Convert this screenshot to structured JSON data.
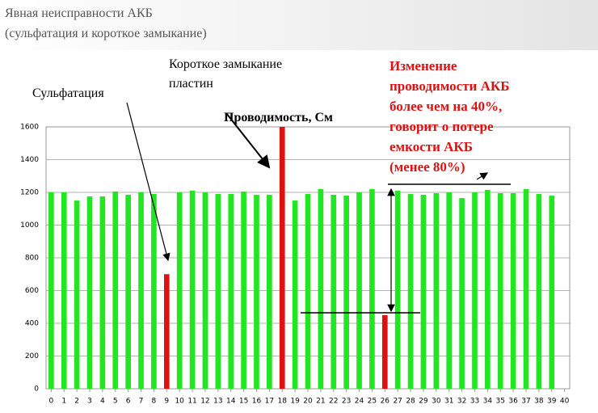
{
  "header": {
    "title": "Явная неисправности АКБ",
    "subtitle": "(сульфатация и короткое замыкание)"
  },
  "chart_data": {
    "type": "bar",
    "title": "Проводимость, См",
    "x": [
      0,
      1,
      2,
      3,
      4,
      5,
      6,
      7,
      8,
      9,
      10,
      11,
      12,
      13,
      14,
      15,
      16,
      17,
      18,
      19,
      20,
      21,
      22,
      23,
      24,
      25,
      26,
      27,
      28,
      29,
      30,
      31,
      32,
      33,
      34,
      35,
      36,
      37,
      38,
      39
    ],
    "values": [
      1200,
      1200,
      1150,
      1175,
      1175,
      1205,
      1185,
      1200,
      1190,
      700,
      1200,
      1210,
      1200,
      1190,
      1190,
      1205,
      1185,
      1185,
      1600,
      1150,
      1190,
      1220,
      1185,
      1180,
      1200,
      1220,
      450,
      1210,
      1190,
      1185,
      1195,
      1200,
      1165,
      1200,
      1215,
      1195,
      1195,
      1220,
      1190,
      1180
    ],
    "colors": [
      "#22e622",
      "#22e622",
      "#22e622",
      "#22e622",
      "#22e622",
      "#22e622",
      "#22e622",
      "#22e622",
      "#22e622",
      "#dd1111",
      "#22e622",
      "#22e622",
      "#22e622",
      "#22e622",
      "#22e622",
      "#22e622",
      "#22e622",
      "#22e622",
      "#dd1111",
      "#22e622",
      "#22e622",
      "#22e622",
      "#22e622",
      "#22e622",
      "#22e622",
      "#22e622",
      "#dd1111",
      "#22e622",
      "#22e622",
      "#22e622",
      "#22e622",
      "#22e622",
      "#22e622",
      "#22e622",
      "#22e622",
      "#22e622",
      "#22e622",
      "#22e622",
      "#22e622",
      "#22e622"
    ],
    "xlim": [
      -0.4,
      40.4
    ],
    "xticks": [
      0,
      1,
      2,
      3,
      4,
      5,
      6,
      7,
      8,
      9,
      10,
      11,
      12,
      13,
      14,
      15,
      16,
      17,
      18,
      19,
      20,
      21,
      22,
      23,
      24,
      25,
      26,
      27,
      28,
      29,
      30,
      31,
      32,
      33,
      34,
      35,
      36,
      37,
      38,
      39,
      40
    ],
    "ylim": [
      0,
      1600
    ],
    "yticks": [
      0,
      200,
      400,
      600,
      800,
      1000,
      1200,
      1400,
      1600
    ],
    "grid": true,
    "annotations": {
      "sulfation": "Сульфатация",
      "short_circuit": [
        "Короткое замыкание",
        "пластин"
      ],
      "note": [
        "Изменение",
        "проводимости АКБ",
        "более чем на 40%,",
        "говорит о потере",
        "емкости АКБ",
        "(менее 80%)"
      ]
    }
  }
}
